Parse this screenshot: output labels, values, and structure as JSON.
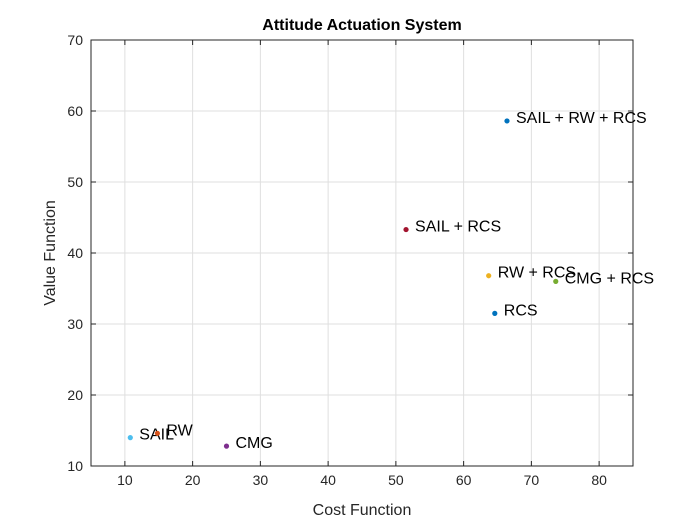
{
  "chart_data": {
    "type": "scatter",
    "title": "Attitude Actuation System",
    "xlabel": "Cost Function",
    "ylabel": "Value Function",
    "xlim": [
      5,
      85
    ],
    "ylim": [
      10,
      70
    ],
    "xticks": [
      10,
      20,
      30,
      40,
      50,
      60,
      70,
      80
    ],
    "yticks": [
      10,
      20,
      30,
      40,
      50,
      60,
      70
    ],
    "grid": true,
    "points": [
      {
        "label": "SAIL",
        "x": 10.8,
        "y": 14.0,
        "color": "#4DBEEE"
      },
      {
        "label": "RW",
        "x": 14.8,
        "y": 14.6,
        "color": "#D95319"
      },
      {
        "label": "CMG",
        "x": 25.0,
        "y": 12.8,
        "color": "#7E2F8E"
      },
      {
        "label": "SAIL + RCS",
        "x": 51.5,
        "y": 43.3,
        "color": "#A2142F"
      },
      {
        "label": "RW + RCS",
        "x": 63.7,
        "y": 36.8,
        "color": "#EDB120"
      },
      {
        "label": "CMG + RCS",
        "x": 73.6,
        "y": 36.0,
        "color": "#77AC30"
      },
      {
        "label": "RCS",
        "x": 64.6,
        "y": 31.5,
        "color": "#0072BD"
      },
      {
        "label": "SAIL + RW + RCS",
        "x": 66.4,
        "y": 58.6,
        "color": "#0072BD"
      }
    ]
  }
}
